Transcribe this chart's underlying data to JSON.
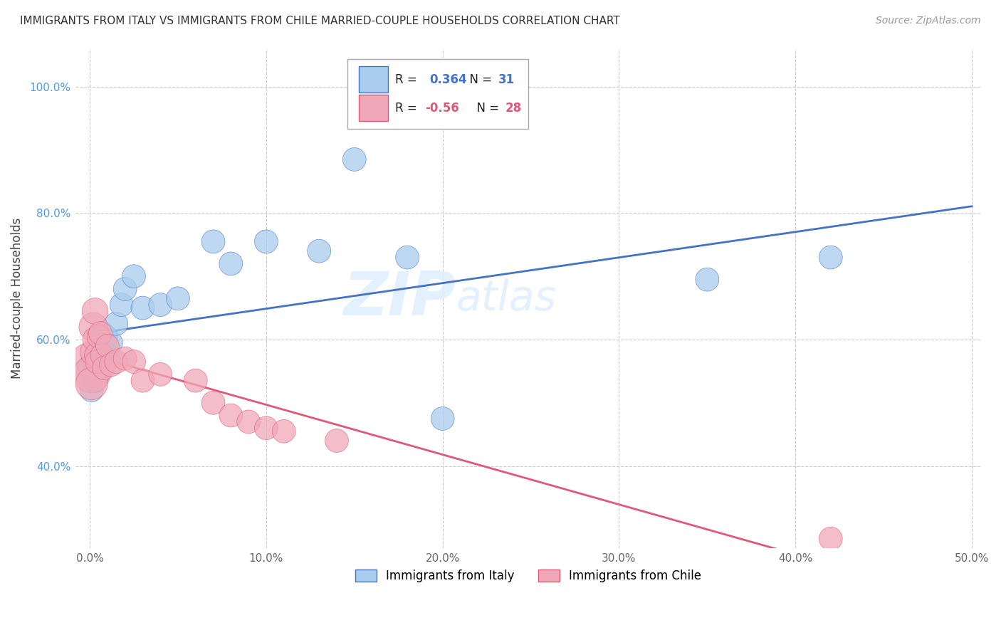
{
  "title": "IMMIGRANTS FROM ITALY VS IMMIGRANTS FROM CHILE MARRIED-COUPLE HOUSEHOLDS CORRELATION CHART",
  "source": "Source: ZipAtlas.com",
  "xlabel_italy": "Immigrants from Italy",
  "xlabel_chile": "Immigrants from Chile",
  "ylabel": "Married-couple Households",
  "R_italy": 0.364,
  "N_italy": 31,
  "R_chile": -0.56,
  "N_chile": 28,
  "color_italy": "#aaccee",
  "color_chile": "#f0a8b8",
  "line_color_italy": "#4472c4",
  "line_color_chile": "#e05878",
  "watermark_zip": "ZIP",
  "watermark_atlas": "atlas",
  "italy_x": [
    0.001,
    0.001,
    0.002,
    0.002,
    0.003,
    0.003,
    0.004,
    0.004,
    0.005,
    0.006,
    0.007,
    0.008,
    0.009,
    0.01,
    0.012,
    0.015,
    0.018,
    0.02,
    0.025,
    0.03,
    0.04,
    0.05,
    0.07,
    0.08,
    0.1,
    0.13,
    0.15,
    0.18,
    0.2,
    0.35,
    0.42
  ],
  "italy_y": [
    0.555,
    0.52,
    0.57,
    0.545,
    0.56,
    0.535,
    0.565,
    0.555,
    0.58,
    0.565,
    0.61,
    0.6,
    0.605,
    0.575,
    0.595,
    0.625,
    0.655,
    0.68,
    0.7,
    0.65,
    0.655,
    0.665,
    0.755,
    0.72,
    0.755,
    0.74,
    0.885,
    0.73,
    0.475,
    0.695,
    0.73
  ],
  "italy_size": [
    120,
    80,
    80,
    80,
    80,
    80,
    80,
    80,
    80,
    80,
    80,
    80,
    80,
    80,
    80,
    80,
    80,
    80,
    80,
    80,
    80,
    80,
    80,
    80,
    80,
    80,
    80,
    80,
    80,
    80,
    80
  ],
  "chile_x": [
    0.001,
    0.001,
    0.001,
    0.002,
    0.002,
    0.003,
    0.003,
    0.004,
    0.004,
    0.005,
    0.006,
    0.007,
    0.008,
    0.01,
    0.012,
    0.015,
    0.02,
    0.025,
    0.03,
    0.04,
    0.06,
    0.07,
    0.08,
    0.09,
    0.1,
    0.11,
    0.14,
    0.42
  ],
  "chile_y": [
    0.56,
    0.545,
    0.53,
    0.62,
    0.58,
    0.645,
    0.6,
    0.575,
    0.565,
    0.605,
    0.61,
    0.575,
    0.555,
    0.59,
    0.56,
    0.565,
    0.57,
    0.565,
    0.535,
    0.545,
    0.535,
    0.5,
    0.48,
    0.47,
    0.46,
    0.455,
    0.44,
    0.285
  ],
  "chile_size": [
    300,
    200,
    150,
    120,
    100,
    100,
    90,
    90,
    80,
    80,
    80,
    80,
    80,
    80,
    80,
    80,
    80,
    80,
    80,
    80,
    80,
    80,
    80,
    80,
    80,
    80,
    80,
    80
  ],
  "xlim_min": -0.008,
  "xlim_max": 0.505,
  "ylim_min": 0.27,
  "ylim_max": 1.06,
  "yticks": [
    0.4,
    0.6,
    0.8,
    1.0
  ],
  "ytick_labels": [
    "40.0%",
    "60.0%",
    "80.0%",
    "100.0%"
  ],
  "xticks": [
    0.0,
    0.1,
    0.2,
    0.3,
    0.4,
    0.5
  ],
  "xtick_labels": [
    "0.0%",
    "10.0%",
    "20.0%",
    "30.0%",
    "40.0%",
    "50.0%"
  ]
}
